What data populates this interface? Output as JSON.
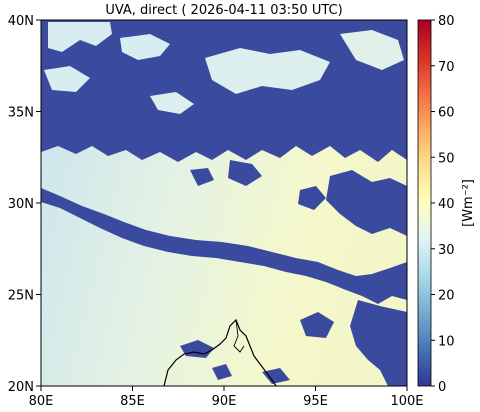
{
  "title": "UVA, direct ( 2026-04-11 03:50 UTC)",
  "map": {
    "lon_range": [
      80,
      100
    ],
    "lat_range": [
      20,
      40
    ],
    "x_ticks": [
      "80E",
      "85E",
      "90E",
      "95E",
      "100E"
    ],
    "y_ticks": [
      "20N",
      "25N",
      "30N",
      "35N",
      "40N"
    ]
  },
  "colorbar": {
    "label": "[Wm⁻²]",
    "range": [
      0,
      80
    ],
    "ticks": [
      "0",
      "10",
      "20",
      "30",
      "40",
      "50",
      "60",
      "70",
      "80"
    ],
    "colormap": "RdYlBu_r"
  },
  "colors": {
    "cloud": "#3a4b9f",
    "clear_low": "#cfe7ef",
    "clear_high": "#f2f7cf",
    "coast": "#000000"
  }
}
